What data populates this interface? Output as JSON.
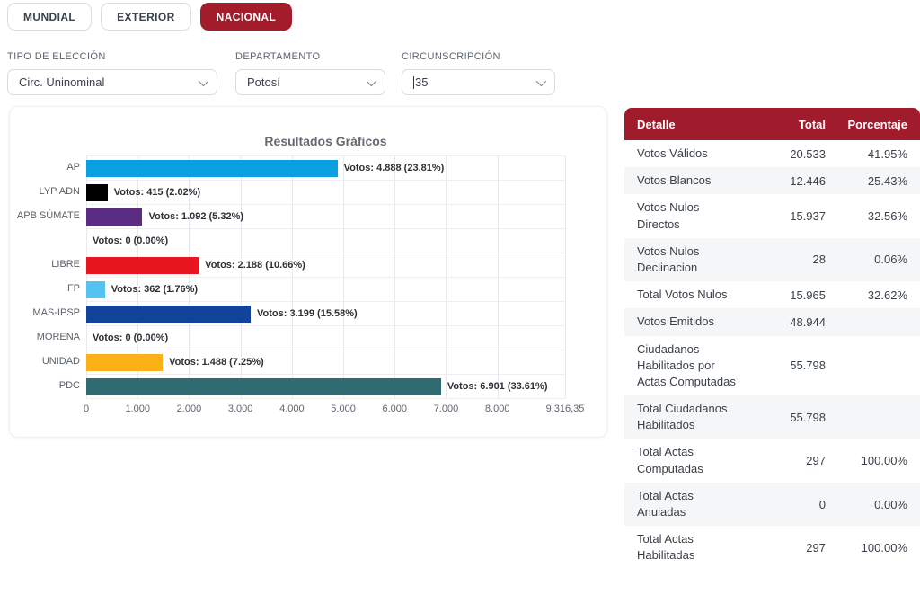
{
  "tabs": [
    {
      "label": "MUNDIAL"
    },
    {
      "label": "EXTERIOR"
    },
    {
      "label": "NACIONAL"
    }
  ],
  "active_tab": "NACIONAL",
  "filters": {
    "tipo_de_eleccion": {
      "label": "TIPO DE ELECCIÓN",
      "value": "Circ. Uninominal"
    },
    "departamento": {
      "label": "DEPARTAMENTO",
      "value": "Potosí"
    },
    "circunscripcion": {
      "label": "CIRCUNSCRIPCIÓN",
      "value": "35"
    }
  },
  "chart_data": {
    "type": "bar",
    "orientation": "horizontal",
    "title": "Resultados Gráficos",
    "categories": [
      "AP",
      "LYP ADN",
      "APB SÚMATE",
      "",
      "LIBRE",
      "FP",
      "MAS-IPSP",
      "MORENA",
      "UNIDAD",
      "PDC"
    ],
    "values": [
      4888,
      415,
      1092,
      0,
      2188,
      362,
      3199,
      0,
      1488,
      6901
    ],
    "percentages": [
      23.81,
      2.02,
      5.32,
      0.0,
      10.66,
      1.76,
      15.58,
      0.0,
      7.25,
      33.61
    ],
    "bar_labels": [
      "Votos: 4.888 (23.81%)",
      "Votos: 415 (2.02%)",
      "Votos: 1.092 (5.32%)",
      "Votos: 0 (0.00%)",
      "Votos: 2.188 (10.66%)",
      "Votos: 362 (1.76%)",
      "Votos: 3.199 (15.58%)",
      "Votos: 0 (0.00%)",
      "Votos: 1.488 (7.25%)",
      "Votos: 6.901 (33.61%)"
    ],
    "colors": [
      "#0a9fe0",
      "#000000",
      "#5b2d82",
      null,
      "#e8171f",
      "#55c3ef",
      "#11439b",
      null,
      "#fbb216",
      "#2f6b71"
    ],
    "xlabel": "",
    "ylabel": "",
    "xlim": [
      0,
      9316.35
    ],
    "x_ticks": [
      "0",
      "1.000",
      "2.000",
      "3.000",
      "4.000",
      "5.000",
      "6.000",
      "7.000",
      "8.000",
      "9.316,35"
    ],
    "x_tick_values": [
      0,
      1000,
      2000,
      3000,
      4000,
      5000,
      6000,
      7000,
      8000,
      9316.35
    ],
    "grid": true,
    "legend": false
  },
  "results_table": {
    "columns": [
      "Detalle",
      "Total",
      "Porcentaje"
    ],
    "rows": [
      {
        "detalle": "Votos Válidos",
        "total": "20.533",
        "porcentaje": "41.95%"
      },
      {
        "detalle": "Votos Blancos",
        "total": "12.446",
        "porcentaje": "25.43%"
      },
      {
        "detalle": "Votos Nulos Directos",
        "total": "15.937",
        "porcentaje": "32.56%"
      },
      {
        "detalle": "Votos Nulos Declinacion",
        "total": "28",
        "porcentaje": "0.06%"
      },
      {
        "detalle": "Total Votos Nulos",
        "total": "15.965",
        "porcentaje": "32.62%"
      },
      {
        "detalle": "Votos Emitidos",
        "total": "48.944",
        "porcentaje": ""
      },
      {
        "detalle": "Ciudadanos Habilitados por Actas Computadas",
        "total": "55.798",
        "porcentaje": ""
      },
      {
        "detalle": "Total Ciudadanos Habilitados",
        "total": "55.798",
        "porcentaje": ""
      },
      {
        "detalle": "Total Actas Computadas",
        "total": "297",
        "porcentaje": "100.00%"
      },
      {
        "detalle": "Total Actas Anuladas",
        "total": "0",
        "porcentaje": "0.00%"
      },
      {
        "detalle": "Total Actas Habilitadas",
        "total": "297",
        "porcentaje": "100.00%"
      }
    ]
  },
  "colors": {
    "accent_red": "#a31c2c",
    "table_header_red": "#a01b2c",
    "row_alt": "#f5f6f8"
  }
}
